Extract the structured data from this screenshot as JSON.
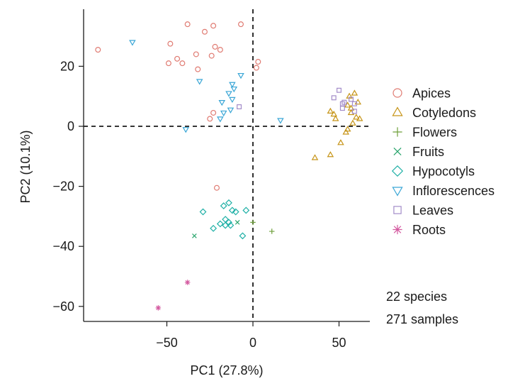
{
  "chart_data": {
    "type": "scatter",
    "xlabel": "PC1 (27.8%)",
    "ylabel": "PC2 (10.1%)",
    "xlim": [
      -97,
      68
    ],
    "ylim": [
      -65,
      38
    ],
    "xticks": [
      -50,
      0,
      50
    ],
    "yticks": [
      20,
      0,
      -20,
      -40,
      -60
    ],
    "xtick_labels": [
      "−50",
      "0",
      "50"
    ],
    "ytick_labels": [
      "20",
      "0",
      "−20",
      "−40",
      "−60"
    ],
    "reference_lines": {
      "x": 0,
      "y": 0,
      "style": "dashed"
    },
    "grid": false,
    "legend_position": "right",
    "annotations": [
      "22 species",
      "271 samples"
    ],
    "series": [
      {
        "name": "Apices",
        "marker": "circle",
        "color": "#e07b72",
        "points": [
          [
            -90,
            25.5
          ],
          [
            -38,
            34
          ],
          [
            -23,
            33.5
          ],
          [
            -7,
            34
          ],
          [
            -28,
            31.5
          ],
          [
            -48,
            27.5
          ],
          [
            -22,
            26.5
          ],
          [
            -19,
            25.5
          ],
          [
            -33,
            24
          ],
          [
            -24,
            23.5
          ],
          [
            -44,
            22.5
          ],
          [
            -41,
            21
          ],
          [
            -49,
            21
          ],
          [
            -32,
            19
          ],
          [
            3,
            21.5
          ],
          [
            2,
            19.5
          ],
          [
            -23,
            4.5
          ],
          [
            -25,
            2.5
          ],
          [
            -21,
            -20.5
          ]
        ]
      },
      {
        "name": "Cotyledons",
        "marker": "triangle",
        "color": "#c69417",
        "points": [
          [
            59,
            11
          ],
          [
            56,
            10
          ],
          [
            61,
            8
          ],
          [
            55,
            7
          ],
          [
            57,
            6
          ],
          [
            45,
            5
          ],
          [
            47,
            4
          ],
          [
            57,
            4.5
          ],
          [
            60,
            3
          ],
          [
            62,
            2.5
          ],
          [
            48,
            2.5
          ],
          [
            58,
            1
          ],
          [
            55,
            -1
          ],
          [
            54,
            -2
          ],
          [
            51,
            -5.5
          ],
          [
            45,
            -9.5
          ],
          [
            36,
            -10.5
          ]
        ]
      },
      {
        "name": "Flowers",
        "marker": "plus",
        "color": "#6e9f3a",
        "points": [
          [
            0,
            -32
          ],
          [
            11,
            -35
          ]
        ]
      },
      {
        "name": "Fruits",
        "marker": "x",
        "color": "#26a36a",
        "points": [
          [
            -34,
            -36.5
          ],
          [
            -9,
            -32
          ]
        ]
      },
      {
        "name": "Hypocotyls",
        "marker": "diamond",
        "color": "#1fb0a6",
        "points": [
          [
            -14,
            -25.5
          ],
          [
            -17,
            -26.5
          ],
          [
            -29,
            -28.5
          ],
          [
            -12,
            -28
          ],
          [
            -10,
            -28.5
          ],
          [
            -4,
            -28
          ],
          [
            -16,
            -31
          ],
          [
            -14,
            -32
          ],
          [
            -19,
            -32.5
          ],
          [
            -16,
            -33
          ],
          [
            -13,
            -33
          ],
          [
            -23,
            -34
          ],
          [
            -6,
            -36.5
          ]
        ]
      },
      {
        "name": "Inflorescences",
        "marker": "triangle-down",
        "color": "#3aa6d6",
        "points": [
          [
            -70,
            28
          ],
          [
            -7,
            17
          ],
          [
            -12,
            14
          ],
          [
            -31,
            15
          ],
          [
            -11,
            12.5
          ],
          [
            -14,
            11
          ],
          [
            -12,
            9
          ],
          [
            -18,
            8
          ],
          [
            -13,
            5.5
          ],
          [
            -17,
            4.5
          ],
          [
            -19,
            2.5
          ],
          [
            16,
            2
          ],
          [
            -39,
            -1
          ]
        ]
      },
      {
        "name": "Leaves",
        "marker": "square",
        "color": "#a38cc9",
        "points": [
          [
            50,
            12
          ],
          [
            47,
            9.5
          ],
          [
            57,
            9
          ],
          [
            53,
            8
          ],
          [
            52,
            7.5
          ],
          [
            59,
            7.5
          ],
          [
            52,
            6
          ],
          [
            59,
            5
          ],
          [
            -8,
            6.5
          ]
        ]
      },
      {
        "name": "Roots",
        "marker": "asterisk",
        "color": "#d45aa0",
        "points": [
          [
            -55,
            -60.5
          ],
          [
            -38,
            -52
          ]
        ]
      }
    ]
  }
}
